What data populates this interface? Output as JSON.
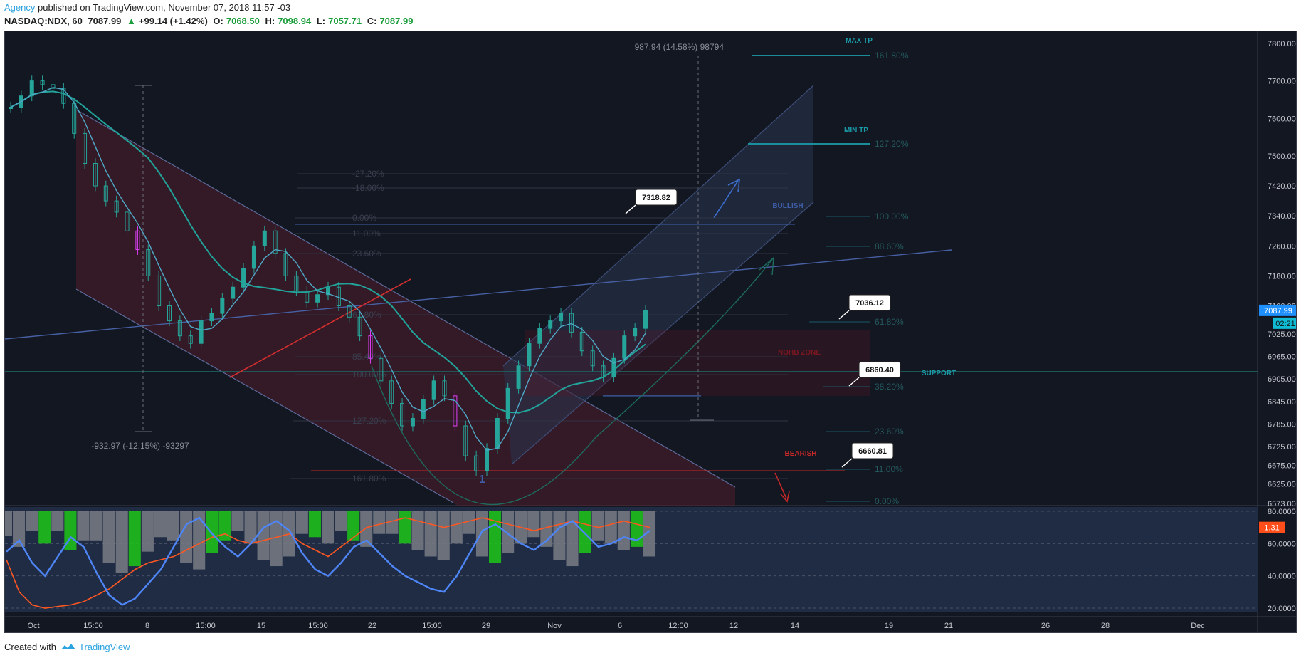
{
  "header": {
    "author": "Agency",
    "published": "published on TradingView.com, November 07, 2018 11:57 -03",
    "symbol": "NASDAQ:NDX, 60",
    "last": "7087.99",
    "change_arrow": "▲",
    "change": "+99.14 (+1.42%)",
    "open_label": "O:",
    "open": "7068.50",
    "high_label": "H:",
    "high": "7098.94",
    "low_label": "L:",
    "low": "7057.71",
    "close_label": "C:",
    "close": "7087.99"
  },
  "footer": {
    "created_with": "Created with",
    "brand": "TradingView"
  },
  "colors": {
    "background": "#131722",
    "candle_up": "#26a69a",
    "candle_magenta": "#e040fb",
    "ma_fast": "#4fa8c7",
    "ma_slow": "#22a39a",
    "channel_down": "#6b1e2e",
    "channel_up": "#2a3550",
    "red_line": "#d32f2f",
    "annotation_teal": "#1b9aa8",
    "annotation_blue": "#3f5ea8",
    "annotation_red": "#b71c1c",
    "osc_blue": "#4f86f7",
    "osc_orange": "#ff5722",
    "osc_green": "#1ec718",
    "osc_gray": "#7a7d85",
    "price_label_bg": "#1e90ff",
    "osc_label_bg": "#ff4e1a",
    "time_label_bg": "#0fbcd4"
  },
  "chart_data": [
    {
      "type": "candlestick",
      "price_axis_ticks": [
        "7800.00",
        "7700.00",
        "7600.00",
        "7500.00",
        "7420.00",
        "7340.00",
        "7260.00",
        "7180.00",
        "7100.00",
        "7025.00",
        "6965.00",
        "6905.00",
        "6845.00",
        "6785.00",
        "6725.00",
        "6675.00",
        "6625.00",
        "6573.00"
      ],
      "time_axis_ticks": [
        "Oct",
        "15:00",
        "8",
        "15:00",
        "15",
        "15:00",
        "22",
        "15:00",
        "29",
        "Nov",
        "6",
        "12:00",
        "12",
        "14",
        "19",
        "21",
        "26",
        "28",
        "Dec"
      ],
      "ylim": [
        6573,
        7800
      ],
      "last_price_label": "7087.99",
      "countdown_label": "02:21",
      "measure_up": "987.94 (14.58%) 98794",
      "measure_down": "-932.97 (-12.15%) -93297",
      "callouts": [
        "7318.82",
        "7036.12",
        "6860.40",
        "6660.81"
      ],
      "zone_labels": [
        "MAX TP",
        "MIN TP",
        "BULLISH",
        "NOHB ZONE",
        "SUPPORT",
        "BEARISH"
      ],
      "wave_label": "1",
      "fib_left_levels": [
        "-27.20%",
        "-18.00%",
        "0.00%",
        "11.00%",
        "23.60%",
        "61.80%",
        "85.40%",
        "100.00%",
        "127.20%",
        "161.80%"
      ],
      "fib_right_levels": [
        "161.80%",
        "127.20%",
        "100.00%",
        "88.60%",
        "61.80%",
        "38.20%",
        "23.60%",
        "11.00%",
        "0.00%"
      ],
      "close_series_sample": [
        7630,
        7660,
        7700,
        7690,
        7680,
        7640,
        7560,
        7480,
        7420,
        7380,
        7350,
        7300,
        7250,
        7180,
        7100,
        7060,
        7020,
        7000,
        7060,
        7080,
        7120,
        7150,
        7200,
        7260,
        7300,
        7240,
        7180,
        7140,
        7110,
        7130,
        7150,
        7100,
        7070,
        7020,
        6960,
        6900,
        6840,
        6780,
        6800,
        6850,
        6900,
        6860,
        6780,
        6700,
        6660,
        6720,
        6800,
        6880,
        6940,
        7000,
        7040,
        7060,
        7080,
        7030,
        6980,
        6940,
        6910,
        6960,
        7020,
        7040,
        7088
      ]
    },
    {
      "type": "line",
      "title": "oscillator",
      "y_ticks": [
        "80.0000",
        "60.0000",
        "40.0000",
        "20.0000"
      ],
      "ylim": [
        20,
        80
      ],
      "value_label": "1.31",
      "series": [
        {
          "name": "",
          "color": "#4f86f7",
          "values": [
            55,
            62,
            48,
            40,
            52,
            64,
            58,
            42,
            28,
            22,
            26,
            35,
            44,
            58,
            72,
            76,
            66,
            58,
            52,
            60,
            70,
            74,
            68,
            54,
            44,
            40,
            48,
            58,
            62,
            54,
            46,
            40,
            36,
            32,
            30,
            40,
            54,
            68,
            72,
            66,
            60,
            56,
            62,
            70,
            74,
            66,
            58,
            60,
            64,
            62,
            68
          ]
        },
        {
          "name": "",
          "color": "#ff5722",
          "values": [
            50,
            30,
            22,
            20,
            21,
            22,
            24,
            28,
            32,
            38,
            44,
            48,
            50,
            52,
            56,
            60,
            64,
            66,
            62,
            60,
            62,
            64,
            66,
            60,
            56,
            52,
            58,
            64,
            70,
            72,
            74,
            76,
            74,
            72,
            70,
            72,
            74,
            76,
            74,
            72,
            70,
            68,
            70,
            72,
            74,
            72,
            70,
            72,
            74,
            72,
            70
          ]
        }
      ]
    }
  ]
}
